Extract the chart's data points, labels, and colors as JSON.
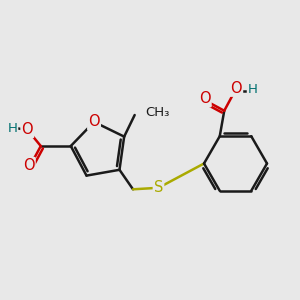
{
  "bg_color": "#e8e8e8",
  "bond_color": "#1a1a1a",
  "bond_width": 1.8,
  "o_color": "#cc0000",
  "s_color": "#aaaa00",
  "teal_color": "#007070",
  "font_size": 9.5,
  "figsize": [
    3.0,
    3.0
  ],
  "dpi": 100,
  "xlim": [
    0,
    10
  ],
  "ylim": [
    1.5,
    9.5
  ]
}
